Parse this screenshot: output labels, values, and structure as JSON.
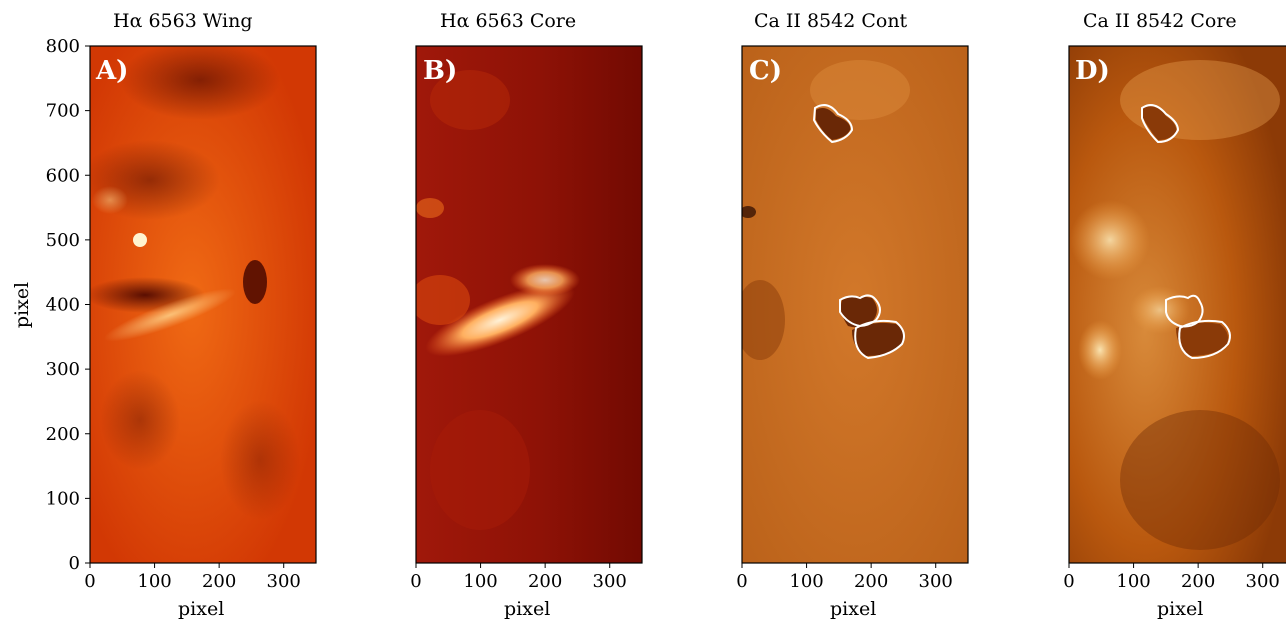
{
  "figure": {
    "panels": [
      {
        "id": "A",
        "label": "A)",
        "title": "Hα 6563 Wing",
        "xlabel": "pixel",
        "base_color": "#d83a04",
        "contours": false
      },
      {
        "id": "B",
        "label": "B)",
        "title": "Hα 6563 Core",
        "xlabel": "pixel",
        "base_color": "#9a1406",
        "contours": false
      },
      {
        "id": "C",
        "label": "C)",
        "title": "Ca II 8542 Cont",
        "xlabel": "pixel",
        "base_color": "#c46a1c",
        "contours": true
      },
      {
        "id": "D",
        "label": "D)",
        "title": "Ca II 8542 Core",
        "xlabel": "pixel",
        "base_color": "#b8580c",
        "contours": true
      }
    ],
    "ylabel": "pixel",
    "x_ticks": [
      "0",
      "100",
      "200",
      "300"
    ],
    "y_ticks": [
      "800",
      "700",
      "600",
      "500",
      "400",
      "300",
      "200",
      "100",
      "0"
    ],
    "x_range": [
      0,
      350
    ],
    "y_range": [
      0,
      800
    ],
    "contour_color": "#ffffff"
  }
}
